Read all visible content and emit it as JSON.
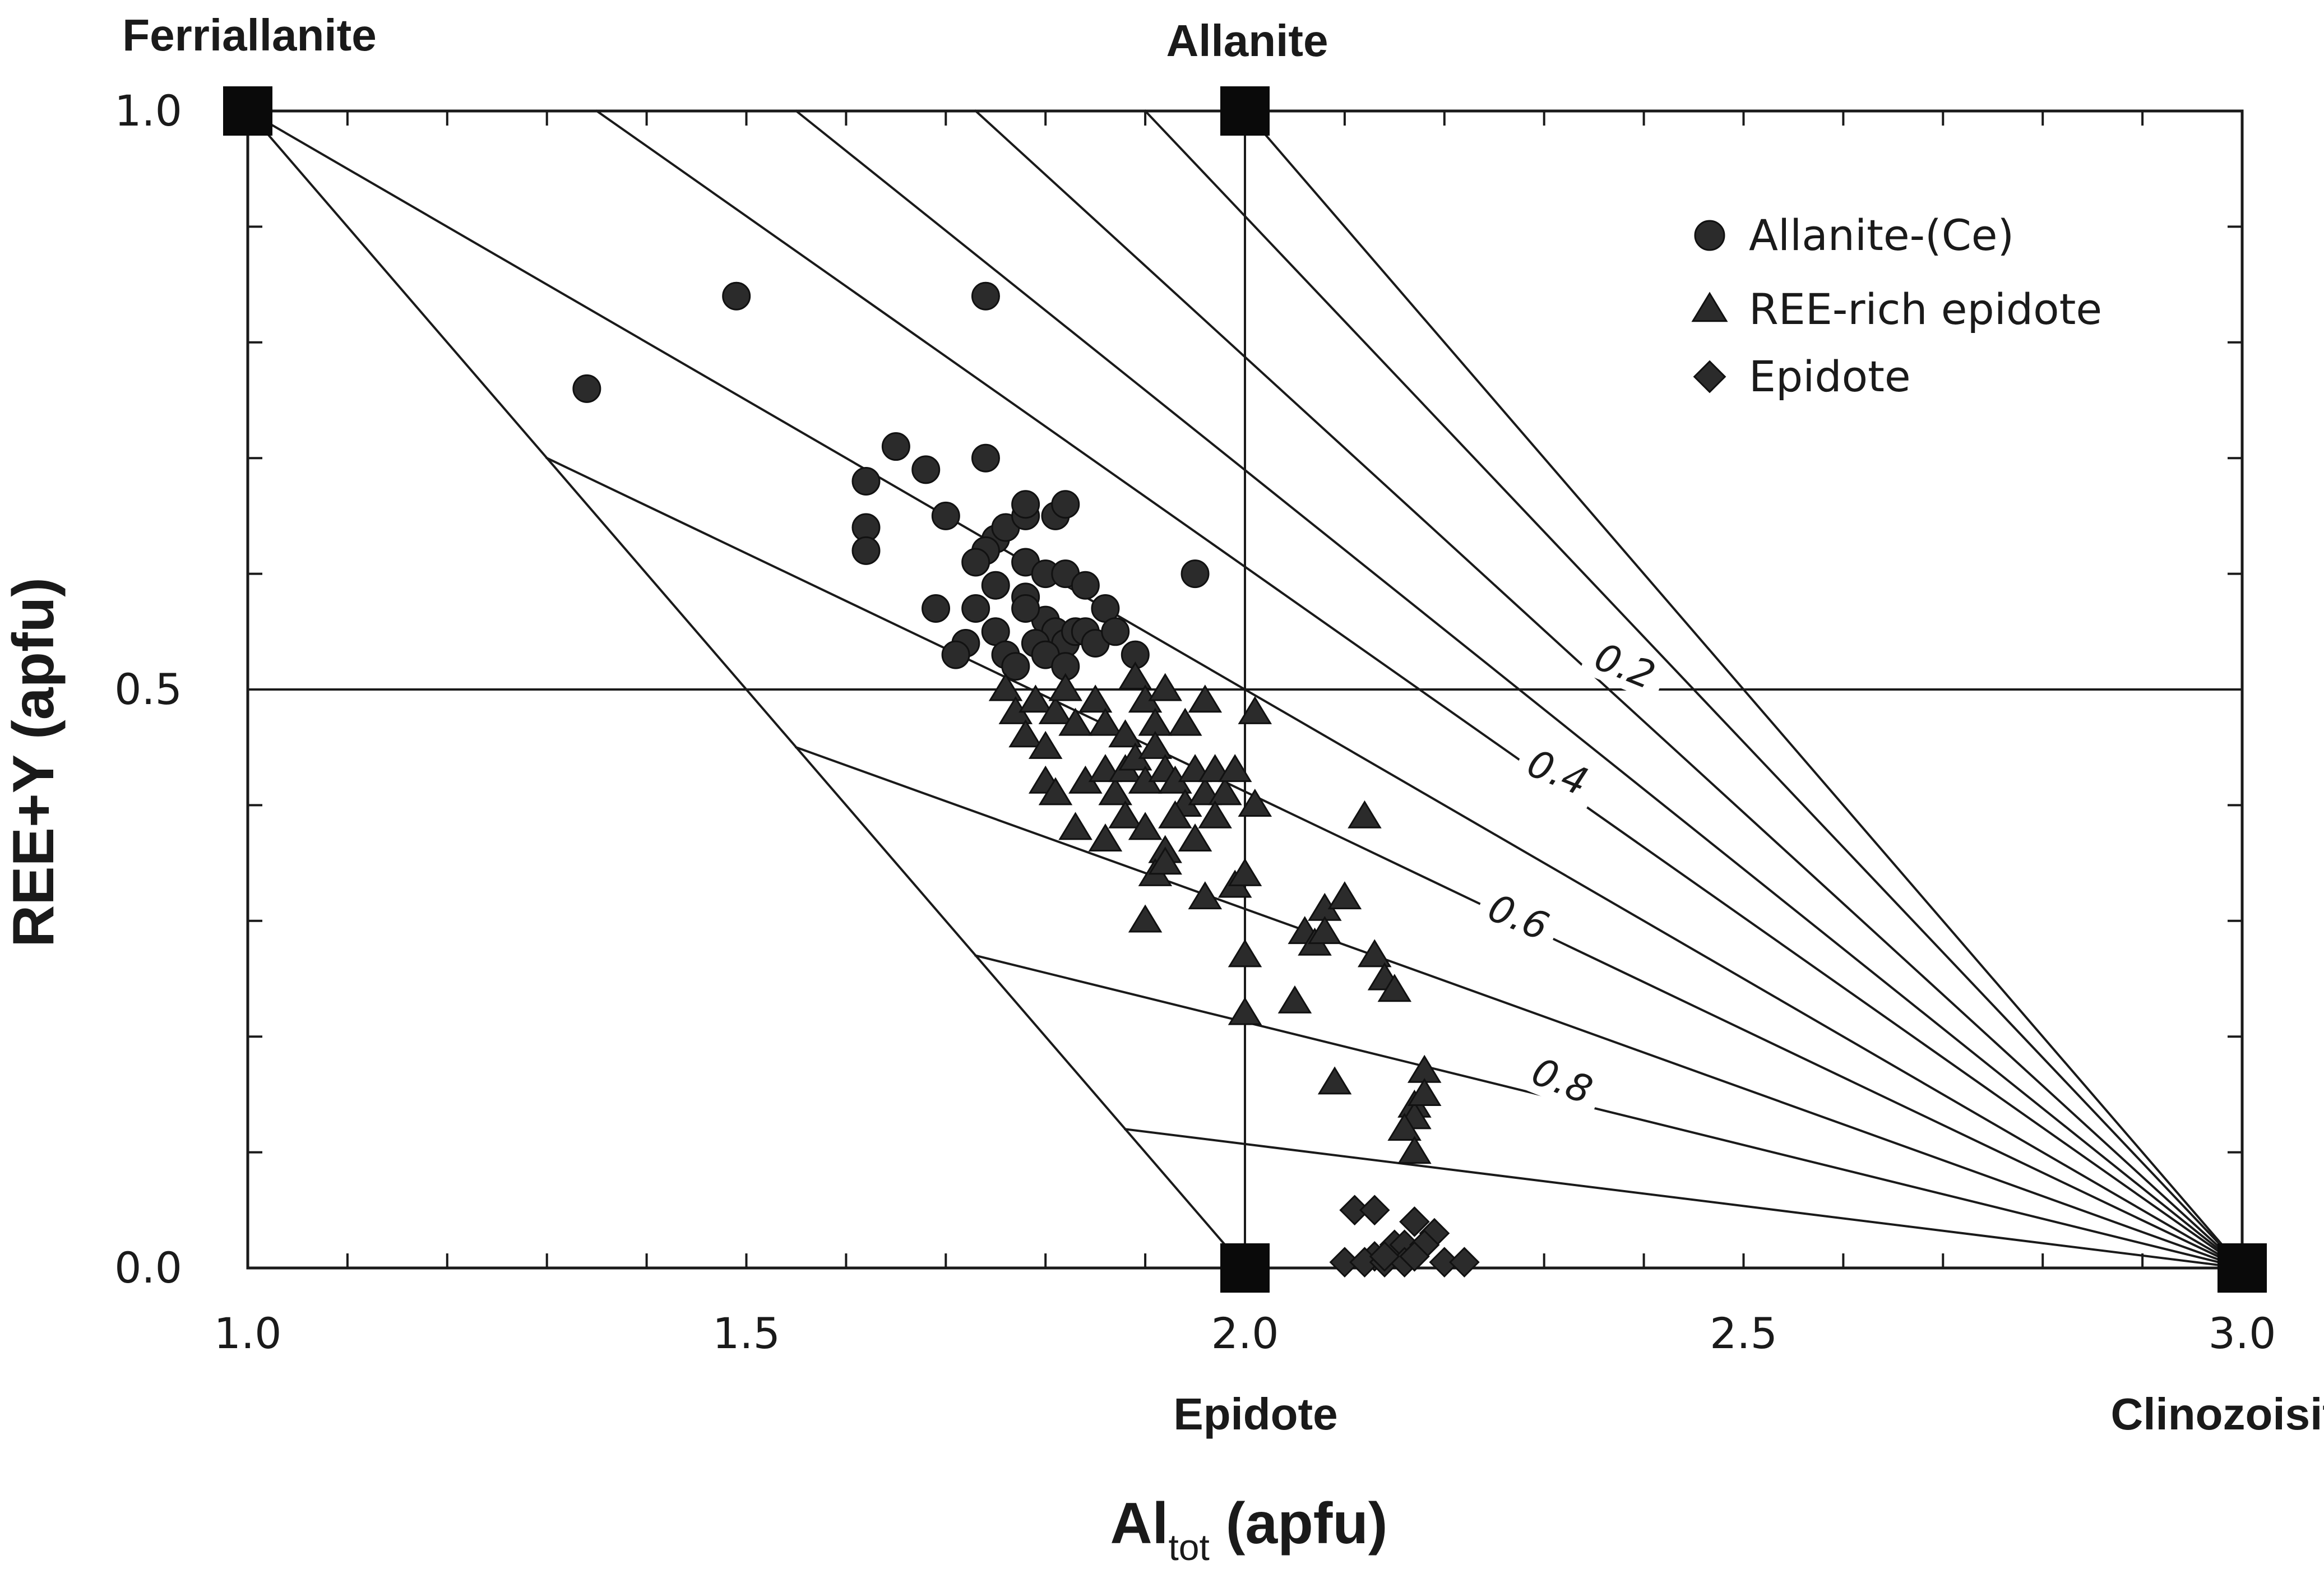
{
  "chart_data": {
    "type": "scatter",
    "title": "",
    "xlabel": "Al",
    "xlabel_sub": "tot",
    "xlabel_suffix": " (apfu)",
    "ylabel": "REE+Y (apfu)",
    "xlim": [
      1.0,
      3.0
    ],
    "ylim": [
      0.0,
      1.0
    ],
    "x_ticks": [
      "1.0",
      "1.5",
      "2.0",
      "2.5",
      "3.0"
    ],
    "y_ticks": [
      "0.0",
      "0.5",
      "1.0"
    ],
    "end_members": [
      {
        "name": "Ferriallanite",
        "x": 1.0,
        "y": 1.0
      },
      {
        "name": "Allanite",
        "x": 2.0,
        "y": 1.0
      },
      {
        "name": "Epidote",
        "x": 2.0,
        "y": 0.0
      },
      {
        "name": "Clinozoisite",
        "x": 3.0,
        "y": 0.0
      }
    ],
    "contour_labels": [
      "0.2",
      "0.4",
      "0.6",
      "0.8"
    ],
    "legend": {
      "position": "top-right",
      "entries": [
        {
          "marker": "circle",
          "label": "Allanite-(Ce)"
        },
        {
          "marker": "triangle",
          "label": "REE-rich epidote"
        },
        {
          "marker": "diamond",
          "label": "Epidote"
        }
      ]
    },
    "series": [
      {
        "name": "Allanite-(Ce)",
        "marker": "circle",
        "points": [
          [
            1.34,
            0.76
          ],
          [
            1.49,
            0.84
          ],
          [
            1.74,
            0.84
          ],
          [
            1.95,
            0.6
          ],
          [
            1.65,
            0.71
          ],
          [
            1.62,
            0.68
          ],
          [
            1.68,
            0.69
          ],
          [
            1.62,
            0.64
          ],
          [
            1.62,
            0.62
          ],
          [
            1.7,
            0.65
          ],
          [
            1.75,
            0.63
          ],
          [
            1.76,
            0.64
          ],
          [
            1.74,
            0.62
          ],
          [
            1.73,
            0.61
          ],
          [
            1.75,
            0.59
          ],
          [
            1.78,
            0.61
          ],
          [
            1.69,
            0.57
          ],
          [
            1.73,
            0.57
          ],
          [
            1.75,
            0.55
          ],
          [
            1.72,
            0.54
          ],
          [
            1.71,
            0.53
          ],
          [
            1.76,
            0.53
          ],
          [
            1.77,
            0.52
          ],
          [
            1.78,
            0.58
          ],
          [
            1.8,
            0.6
          ],
          [
            1.81,
            0.65
          ],
          [
            1.82,
            0.66
          ],
          [
            1.78,
            0.65
          ],
          [
            1.82,
            0.6
          ],
          [
            1.84,
            0.59
          ],
          [
            1.86,
            0.57
          ],
          [
            1.8,
            0.56
          ],
          [
            1.81,
            0.55
          ],
          [
            1.82,
            0.54
          ],
          [
            1.83,
            0.55
          ],
          [
            1.84,
            0.55
          ],
          [
            1.85,
            0.54
          ],
          [
            1.87,
            0.55
          ],
          [
            1.89,
            0.53
          ],
          [
            1.79,
            0.54
          ],
          [
            1.78,
            0.57
          ],
          [
            1.74,
            0.7
          ],
          [
            1.78,
            0.66
          ],
          [
            1.8,
            0.53
          ],
          [
            1.82,
            0.52
          ]
        ]
      },
      {
        "name": "REE-rich epidote",
        "marker": "triangle",
        "points": [
          [
            1.76,
            0.5
          ],
          [
            1.77,
            0.48
          ],
          [
            1.79,
            0.49
          ],
          [
            1.81,
            0.48
          ],
          [
            1.83,
            0.47
          ],
          [
            1.78,
            0.46
          ],
          [
            1.8,
            0.45
          ],
          [
            1.82,
            0.5
          ],
          [
            1.85,
            0.49
          ],
          [
            1.86,
            0.47
          ],
          [
            1.88,
            0.46
          ],
          [
            1.89,
            0.51
          ],
          [
            1.9,
            0.49
          ],
          [
            1.91,
            0.47
          ],
          [
            1.92,
            0.5
          ],
          [
            1.94,
            0.47
          ],
          [
            1.96,
            0.49
          ],
          [
            1.8,
            0.42
          ],
          [
            1.81,
            0.41
          ],
          [
            1.84,
            0.42
          ],
          [
            1.86,
            0.43
          ],
          [
            1.87,
            0.41
          ],
          [
            1.88,
            0.43
          ],
          [
            1.89,
            0.44
          ],
          [
            1.9,
            0.42
          ],
          [
            1.91,
            0.45
          ],
          [
            1.92,
            0.43
          ],
          [
            1.93,
            0.42
          ],
          [
            1.94,
            0.4
          ],
          [
            1.95,
            0.43
          ],
          [
            1.96,
            0.41
          ],
          [
            1.97,
            0.43
          ],
          [
            1.98,
            0.41
          ],
          [
            1.99,
            0.43
          ],
          [
            1.83,
            0.38
          ],
          [
            1.86,
            0.37
          ],
          [
            1.88,
            0.39
          ],
          [
            1.9,
            0.38
          ],
          [
            1.92,
            0.36
          ],
          [
            1.93,
            0.39
          ],
          [
            1.95,
            0.37
          ],
          [
            1.97,
            0.39
          ],
          [
            1.91,
            0.34
          ],
          [
            1.92,
            0.35
          ],
          [
            1.9,
            0.3
          ],
          [
            1.96,
            0.32
          ],
          [
            1.99,
            0.33
          ],
          [
            2.0,
            0.27
          ],
          [
            2.0,
            0.34
          ],
          [
            2.01,
            0.4
          ],
          [
            2.01,
            0.48
          ],
          [
            2.0,
            0.22
          ],
          [
            2.12,
            0.39
          ],
          [
            2.06,
            0.29
          ],
          [
            2.08,
            0.31
          ],
          [
            2.1,
            0.32
          ],
          [
            2.07,
            0.28
          ],
          [
            2.05,
            0.23
          ],
          [
            2.13,
            0.27
          ],
          [
            2.14,
            0.25
          ],
          [
            2.15,
            0.24
          ],
          [
            2.09,
            0.16
          ],
          [
            2.18,
            0.17
          ],
          [
            2.17,
            0.14
          ],
          [
            2.17,
            0.13
          ],
          [
            2.18,
            0.15
          ],
          [
            2.16,
            0.12
          ],
          [
            2.17,
            0.1
          ],
          [
            2.08,
            0.29
          ]
        ]
      },
      {
        "name": "Epidote",
        "marker": "diamond",
        "points": [
          [
            2.11,
            0.05
          ],
          [
            2.13,
            0.05
          ],
          [
            2.17,
            0.04
          ],
          [
            2.19,
            0.03
          ],
          [
            2.15,
            0.02
          ],
          [
            2.13,
            0.01
          ],
          [
            2.16,
            0.02
          ],
          [
            2.18,
            0.02
          ],
          [
            2.1,
            0.005
          ],
          [
            2.12,
            0.005
          ],
          [
            2.14,
            0.005
          ],
          [
            2.16,
            0.005
          ],
          [
            2.2,
            0.005
          ],
          [
            2.22,
            0.005
          ],
          [
            2.17,
            0.01
          ],
          [
            2.14,
            0.01
          ]
        ]
      }
    ]
  }
}
